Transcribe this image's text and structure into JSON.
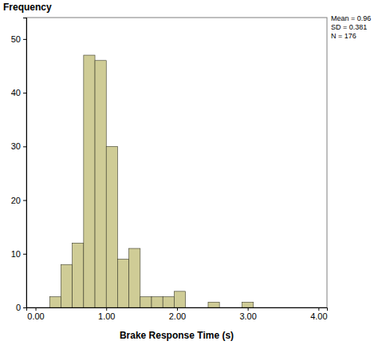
{
  "chart_data": {
    "type": "histogram",
    "y_label": "Frequency",
    "x_label": "Brake Response Time (s)",
    "annotations": [
      "Mean = 0.96",
      "SD = 0.381",
      "N = 176"
    ],
    "bins": [
      0.2,
      0.36,
      0.52,
      0.68,
      0.84,
      1.0,
      1.16,
      1.32,
      1.48,
      1.64,
      1.8,
      1.96,
      2.12,
      2.28,
      2.44,
      2.6,
      2.76,
      2.92,
      3.08
    ],
    "values": [
      2,
      8,
      12,
      47,
      46,
      30,
      9,
      11,
      2,
      2,
      2,
      3,
      0,
      0,
      1,
      0,
      0,
      1
    ],
    "color": "#cfcc96",
    "xlim": [
      -0.13,
      4.12
    ],
    "ylim": [
      0,
      54
    ],
    "xticks": [
      {
        "value": 0,
        "label": "0.00"
      },
      {
        "value": 1,
        "label": "1.00"
      },
      {
        "value": 2,
        "label": "2.00"
      },
      {
        "value": 3,
        "label": "3.00"
      },
      {
        "value": 4,
        "label": "4.00"
      }
    ],
    "yticks": [
      0,
      10,
      20,
      30,
      40,
      50
    ],
    "grid": false
  }
}
